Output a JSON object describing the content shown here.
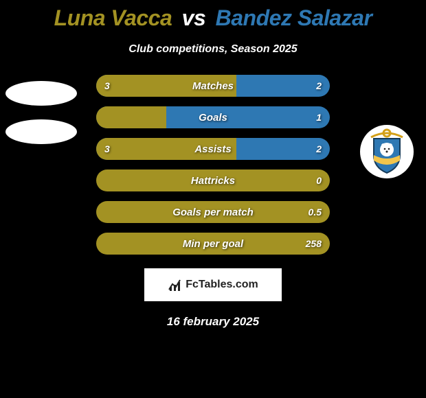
{
  "title": {
    "player1": "Luna Vacca",
    "vs": "vs",
    "player2": "Bandez Salazar",
    "player1_color": "#a39223",
    "vs_color": "#ffffff",
    "player2_color": "#2e78b3"
  },
  "subtitle": "Club competitions, Season 2025",
  "colors": {
    "player1_bar": "#a39223",
    "player2_bar": "#2e78b3",
    "player1_text": "#a39223",
    "player2_text": "#2e78b3",
    "background": "#000000",
    "track_right_default": "#2e78b3"
  },
  "bars": [
    {
      "label": "Matches",
      "left_val": "3",
      "right_val": "2",
      "left_pct": 60,
      "right_color": "#2e78b3"
    },
    {
      "label": "Goals",
      "left_val": "",
      "right_val": "1",
      "left_pct": 30,
      "right_color": "#2e78b3"
    },
    {
      "label": "Assists",
      "left_val": "3",
      "right_val": "2",
      "left_pct": 60,
      "right_color": "#2e78b3"
    },
    {
      "label": "Hattricks",
      "left_val": "",
      "right_val": "0",
      "left_pct": 0,
      "right_color": "#a39223"
    },
    {
      "label": "Goals per match",
      "left_val": "",
      "right_val": "0.5",
      "left_pct": 0,
      "right_color": "#a39223"
    },
    {
      "label": "Min per goal",
      "left_val": "",
      "right_val": "258",
      "left_pct": 0,
      "right_color": "#a39223"
    }
  ],
  "footer": {
    "brand": "FcTables.com",
    "date": "16 february 2025"
  },
  "right_badge": {
    "shield_main": "#2e78b3",
    "shield_accent": "#f3c54b",
    "anchor_ring": "#d4a018"
  }
}
